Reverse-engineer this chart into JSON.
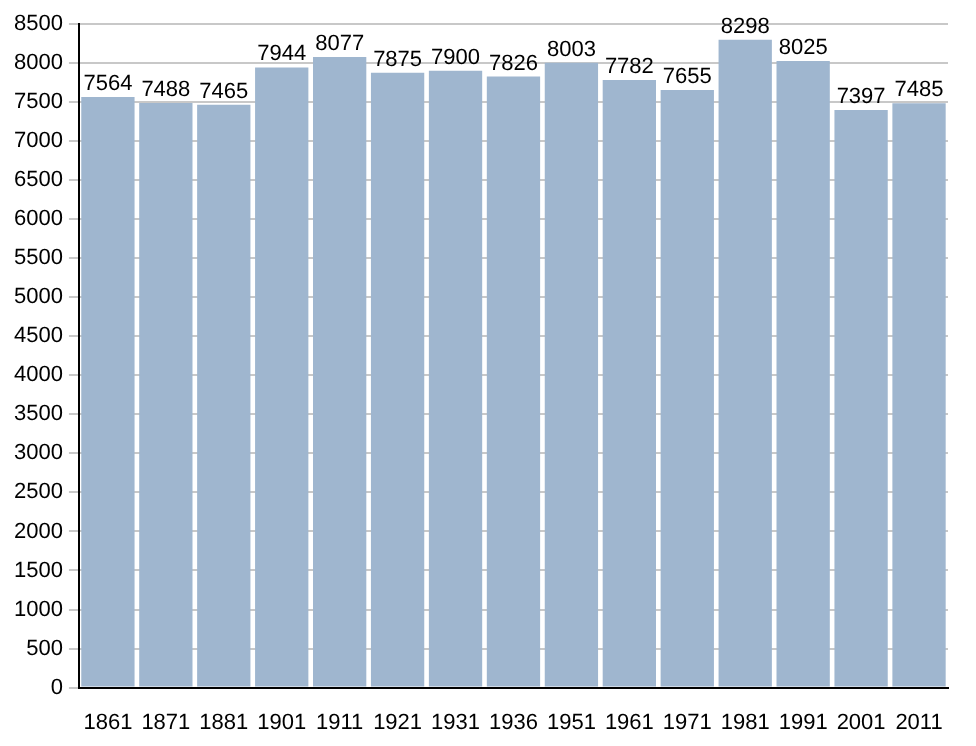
{
  "chart_data": {
    "type": "bar",
    "categories": [
      "1861",
      "1871",
      "1881",
      "1901",
      "1911",
      "1921",
      "1931",
      "1936",
      "1951",
      "1961",
      "1971",
      "1981",
      "1991",
      "2001",
      "2011"
    ],
    "values": [
      7564,
      7488,
      7465,
      7944,
      8077,
      7875,
      7900,
      7826,
      8003,
      7782,
      7655,
      8298,
      8025,
      7397,
      7485
    ],
    "color": "#9fb6cf",
    "ylim": [
      0,
      8500
    ],
    "yticks": [
      0,
      500,
      1000,
      1500,
      2000,
      2500,
      3000,
      3500,
      4000,
      4500,
      5000,
      5500,
      6000,
      6500,
      7000,
      7500,
      8000,
      8500
    ],
    "grid": "y",
    "data_labels": true
  }
}
